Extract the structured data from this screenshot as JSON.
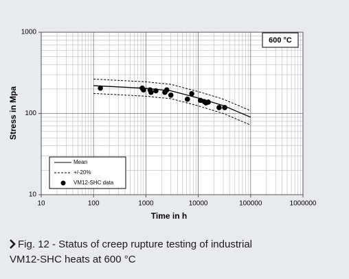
{
  "chart_data": {
    "type": "scatter",
    "xlabel": "Time in h",
    "ylabel": "Stress in Mpa",
    "annotation": "600 °C",
    "log_x": true,
    "log_y": true,
    "grid": true,
    "legend": "lower left",
    "xlim": [
      10,
      1000000
    ],
    "ylim": [
      10,
      1000
    ],
    "xticks": [
      10,
      100,
      1000,
      10000,
      100000,
      1000000
    ],
    "yticks": [
      10,
      100,
      1000
    ],
    "lines": [
      {
        "name": "Mean",
        "color": "#000000",
        "dash": false,
        "x": [
          100,
          300,
          1000,
          3000,
          10000,
          30000,
          100000
        ],
        "values": [
          220,
          212,
          204,
          190,
          155,
          125,
          90
        ]
      },
      {
        "name": "+/-20%",
        "color": "#000000",
        "dash": true,
        "x": [
          100,
          300,
          1000,
          3000,
          10000,
          30000,
          100000
        ],
        "values": [
          265,
          255,
          245,
          228,
          186,
          150,
          108
        ],
        "lower": [
          176,
          170,
          163,
          152,
          124,
          100,
          72
        ]
      }
    ],
    "series": [
      {
        "name": "VM12-SHC data",
        "color": "#000000",
        "x": [
          135,
          850,
          900,
          1200,
          1250,
          1550,
          2300,
          2500,
          3000,
          6200,
          7500,
          11000,
          13000,
          14000,
          15500,
          25000,
          32000
        ],
        "values": [
          205,
          205,
          195,
          195,
          182,
          190,
          182,
          195,
          168,
          150,
          175,
          145,
          140,
          135,
          138,
          118,
          118
        ]
      }
    ]
  },
  "caption": [
    "Fig. 12 - Status of creep rupture testing of industrial",
    "VM12-SHC heats at 600 °C"
  ]
}
